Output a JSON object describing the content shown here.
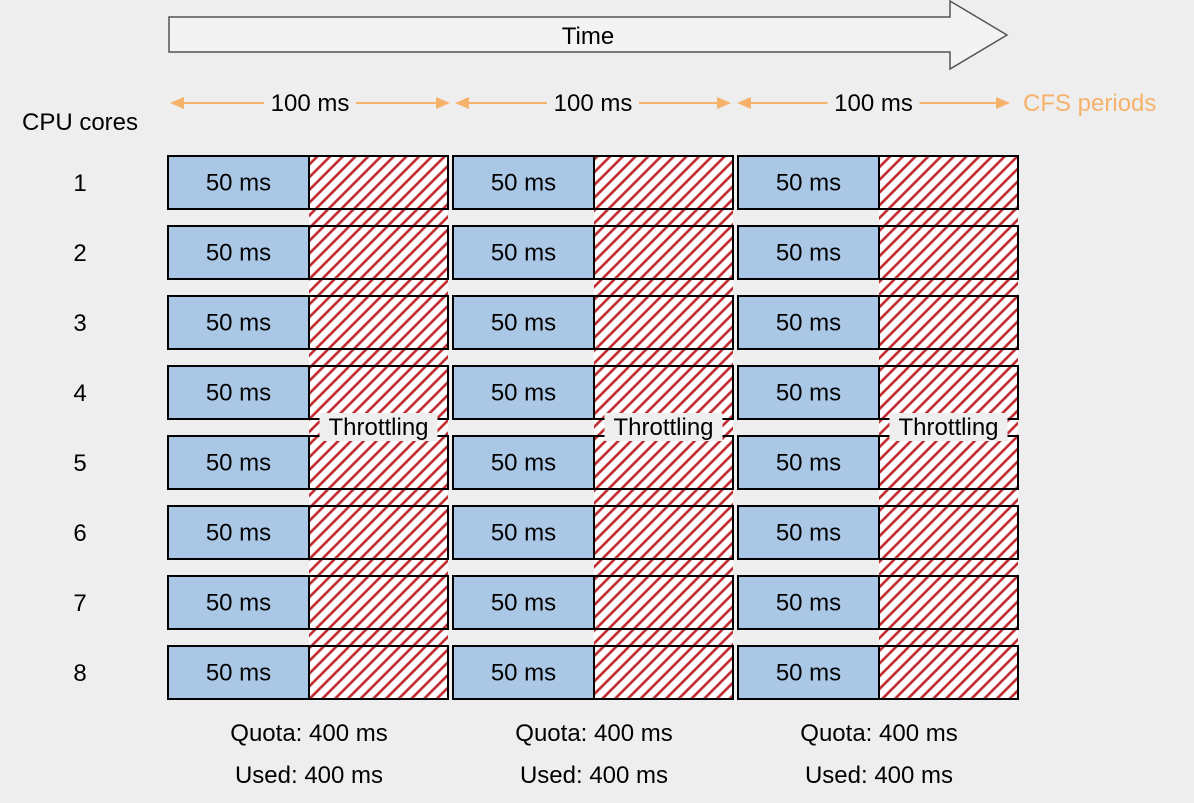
{
  "diagram": {
    "time_label": "Time",
    "cpu_cores_label": "CPU cores",
    "period_labels": [
      "100 ms",
      "100 ms",
      "100 ms"
    ],
    "cfs_periods_label": "CFS periods",
    "cores": [
      "1",
      "2",
      "3",
      "4",
      "5",
      "6",
      "7",
      "8"
    ],
    "used_block_label": "50 ms",
    "throttling_label": "Throttling",
    "periods": [
      {
        "quota": "Quota: 400 ms",
        "used": "Used: 400 ms"
      },
      {
        "quota": "Quota: 400 ms",
        "used": "Used: 400 ms"
      },
      {
        "quota": "Quota: 400 ms",
        "used": "Used: 400 ms"
      }
    ],
    "colors": {
      "background": "#eeeeee",
      "used_fill": "#aac8e6",
      "throttle_stripe": "#c0282d",
      "period_arrow": "#f6b26b",
      "time_arrow_fill": "#f3f3f3",
      "stroke": "#000000"
    }
  }
}
